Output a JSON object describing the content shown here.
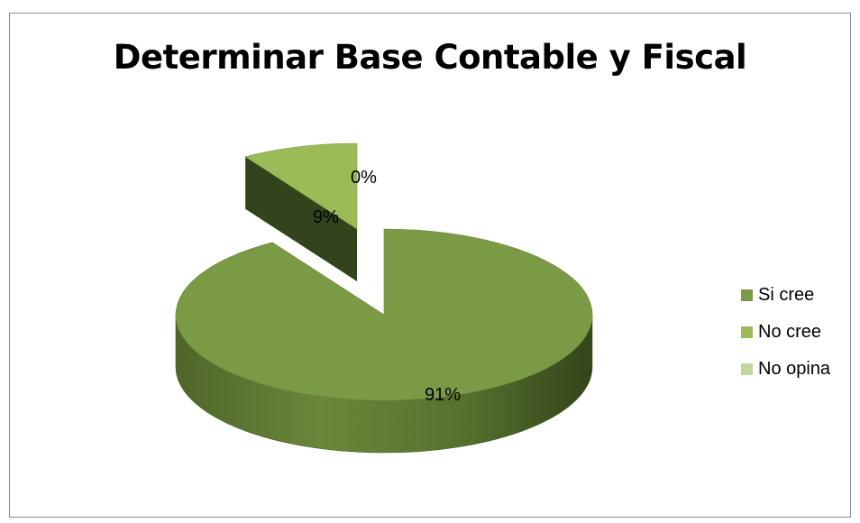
{
  "chart_data": {
    "type": "pie",
    "title": "Determinar Base Contable y Fiscal",
    "three_d": true,
    "exploded": true,
    "legend_position": "right",
    "categories": [
      "Si cree",
      "No cree",
      "No opina"
    ],
    "values": [
      91,
      9,
      0
    ],
    "labels": [
      "91%",
      "9%",
      "0%"
    ],
    "colors": [
      "#7a9a45",
      "#9bbb59",
      "#c3d69b"
    ]
  }
}
